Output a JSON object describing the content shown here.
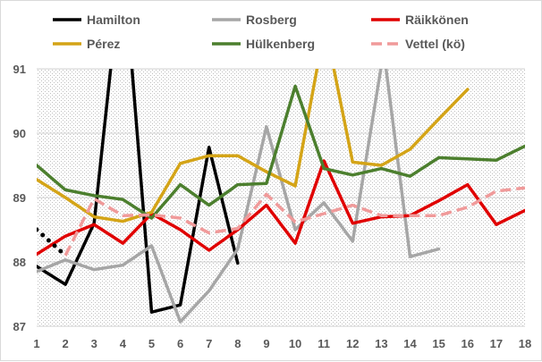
{
  "chart_data": {
    "type": "line",
    "title": "",
    "xlabel": "",
    "ylabel": "",
    "xlim": [
      1,
      18
    ],
    "ylim": [
      87,
      91
    ],
    "x_ticks": [
      "1",
      "2",
      "3",
      "4",
      "5",
      "6",
      "7",
      "8",
      "9",
      "10",
      "11",
      "12",
      "13",
      "14",
      "15",
      "16",
      "17",
      "18"
    ],
    "y_ticks": [
      "87",
      "88",
      "89",
      "90",
      "91"
    ],
    "grid": "horizontal",
    "legend": "top",
    "series": [
      {
        "name": "Hamilton",
        "color": "#000000",
        "style": "solid",
        "points": [
          [
            1,
            87.93
          ],
          [
            2,
            87.65
          ],
          [
            3,
            88.6
          ],
          [
            3.6,
            91.1
          ],
          [
            4.3,
            91.1
          ],
          [
            5,
            87.22
          ],
          [
            6,
            87.33
          ],
          [
            7,
            89.78
          ],
          [
            8,
            87.98
          ]
        ]
      },
      {
        "name": "Rosberg",
        "color": "#a6a6a6",
        "style": "solid",
        "points": [
          [
            1,
            87.85
          ],
          [
            2,
            88.03
          ],
          [
            3,
            87.88
          ],
          [
            4,
            87.95
          ],
          [
            5,
            88.25
          ],
          [
            6,
            87.07
          ],
          [
            7,
            87.55
          ],
          [
            8,
            88.2
          ],
          [
            9,
            90.1
          ],
          [
            10,
            88.5
          ],
          [
            11,
            88.92
          ],
          [
            12,
            88.32
          ],
          [
            13,
            91.05
          ],
          [
            13.15,
            91.05
          ],
          [
            14,
            88.08
          ],
          [
            15,
            88.2
          ]
        ]
      },
      {
        "name": "Räikkönen",
        "color": "#e00000",
        "style": "solid",
        "points": [
          [
            1,
            88.12
          ],
          [
            2,
            88.4
          ],
          [
            3,
            88.58
          ],
          [
            4,
            88.29
          ],
          [
            5,
            88.75
          ],
          [
            6,
            88.5
          ],
          [
            7,
            88.18
          ],
          [
            8,
            88.5
          ],
          [
            9,
            88.88
          ],
          [
            10,
            88.29
          ],
          [
            11,
            89.57
          ],
          [
            12,
            88.6
          ],
          [
            13,
            88.7
          ],
          [
            14,
            88.72
          ],
          [
            15,
            88.95
          ],
          [
            16,
            89.2
          ],
          [
            17,
            88.58
          ],
          [
            18,
            88.8
          ]
        ]
      },
      {
        "name": "Pérez",
        "color": "#d4a417",
        "style": "solid",
        "points": [
          [
            1,
            89.28
          ],
          [
            2,
            89.0
          ],
          [
            3,
            88.7
          ],
          [
            4,
            88.63
          ],
          [
            5,
            88.77
          ],
          [
            6,
            89.53
          ],
          [
            7,
            89.65
          ],
          [
            8,
            89.65
          ],
          [
            9,
            89.4
          ],
          [
            10,
            89.18
          ],
          [
            10.8,
            91.1
          ],
          [
            11.3,
            91.1
          ],
          [
            12,
            89.55
          ],
          [
            13,
            89.5
          ],
          [
            14,
            89.75
          ],
          [
            15,
            90.22
          ],
          [
            16,
            90.68
          ]
        ]
      },
      {
        "name": "Hülkenberg",
        "color": "#4c7f2e",
        "style": "solid",
        "points": [
          [
            1,
            89.5
          ],
          [
            2,
            89.12
          ],
          [
            3,
            89.03
          ],
          [
            4,
            88.97
          ],
          [
            5,
            88.68
          ],
          [
            6,
            89.2
          ],
          [
            7,
            88.88
          ],
          [
            8,
            89.2
          ],
          [
            9,
            89.22
          ],
          [
            10,
            90.73
          ],
          [
            11,
            89.45
          ],
          [
            12,
            89.35
          ],
          [
            13,
            89.45
          ],
          [
            14,
            89.33
          ],
          [
            15,
            89.62
          ],
          [
            16,
            89.6
          ],
          [
            17,
            89.58
          ],
          [
            18,
            89.8
          ]
        ]
      },
      {
        "name": "Vettel (kö)",
        "color": "#f09a9a",
        "style": "dashed",
        "points": [
          [
            2,
            88.1
          ],
          [
            3,
            88.98
          ],
          [
            4,
            88.72
          ],
          [
            5,
            88.73
          ],
          [
            6,
            88.68
          ],
          [
            7,
            88.45
          ],
          [
            8,
            88.52
          ],
          [
            9,
            89.05
          ],
          [
            10,
            88.62
          ],
          [
            11,
            88.75
          ],
          [
            12,
            88.88
          ],
          [
            13,
            88.72
          ],
          [
            14,
            88.72
          ],
          [
            15,
            88.72
          ],
          [
            16,
            88.85
          ],
          [
            17,
            89.1
          ],
          [
            18,
            89.15
          ]
        ]
      },
      {
        "name": "",
        "color": "#000000",
        "style": "dotted",
        "points": [
          [
            1,
            88.5
          ],
          [
            2,
            88.1
          ]
        ]
      }
    ]
  }
}
